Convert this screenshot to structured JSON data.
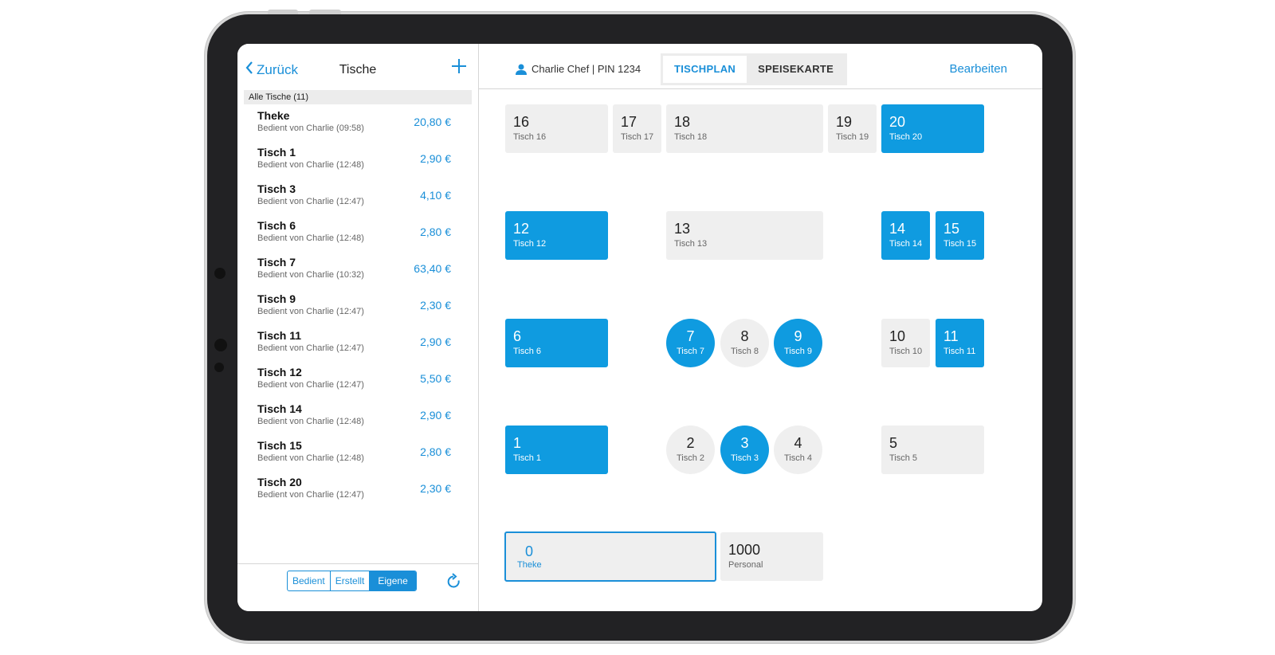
{
  "sidebar": {
    "back_label": "Zurück",
    "title": "Tische",
    "section_header": "Alle Tische (11)",
    "items": [
      {
        "name": "Theke",
        "sub": "Bedient von Charlie (09:58)",
        "amount": "20,80 €"
      },
      {
        "name": "Tisch 1",
        "sub": "Bedient von Charlie (12:48)",
        "amount": "2,90 €"
      },
      {
        "name": "Tisch 3",
        "sub": "Bedient von Charlie (12:47)",
        "amount": "4,10 €"
      },
      {
        "name": "Tisch 6",
        "sub": "Bedient von Charlie (12:48)",
        "amount": "2,80 €"
      },
      {
        "name": "Tisch 7",
        "sub": "Bedient von Charlie (10:32)",
        "amount": "63,40 €"
      },
      {
        "name": "Tisch 9",
        "sub": "Bedient von Charlie (12:47)",
        "amount": "2,30 €"
      },
      {
        "name": "Tisch 11",
        "sub": "Bedient von Charlie (12:47)",
        "amount": "2,90 €"
      },
      {
        "name": "Tisch 12",
        "sub": "Bedient von Charlie (12:47)",
        "amount": "5,50 €"
      },
      {
        "name": "Tisch 14",
        "sub": "Bedient von Charlie (12:48)",
        "amount": "2,90 €"
      },
      {
        "name": "Tisch 15",
        "sub": "Bedient von Charlie (12:48)",
        "amount": "2,80 €"
      },
      {
        "name": "Tisch 20",
        "sub": "Bedient von Charlie (12:47)",
        "amount": "2,30 €"
      }
    ],
    "filters": [
      "Bedient",
      "Erstellt",
      "Eigene"
    ],
    "active_filter": "Eigene"
  },
  "topbar": {
    "user": "Charlie Chef | PIN 1234",
    "tabs": [
      "TISCHPLAN",
      "SPEISEKARTE"
    ],
    "active_tab": "TISCHPLAN",
    "edit_label": "Bearbeiten"
  },
  "tables": {
    "t16": {
      "num": "16",
      "label": "Tisch 16",
      "occupied": false
    },
    "t17": {
      "num": "17",
      "label": "Tisch 17",
      "occupied": false
    },
    "t18": {
      "num": "18",
      "label": "Tisch 18",
      "occupied": false
    },
    "t19": {
      "num": "19",
      "label": "Tisch 19",
      "occupied": false
    },
    "t20": {
      "num": "20",
      "label": "Tisch 20",
      "occupied": true
    },
    "t12": {
      "num": "12",
      "label": "Tisch 12",
      "occupied": true
    },
    "t13": {
      "num": "13",
      "label": "Tisch 13",
      "occupied": false
    },
    "t14": {
      "num": "14",
      "label": "Tisch 14",
      "occupied": true
    },
    "t15": {
      "num": "15",
      "label": "Tisch 15",
      "occupied": true
    },
    "t6": {
      "num": "6",
      "label": "Tisch 6",
      "occupied": true
    },
    "t7": {
      "num": "7",
      "label": "Tisch 7",
      "occupied": true
    },
    "t8": {
      "num": "8",
      "label": "Tisch 8",
      "occupied": false
    },
    "t9": {
      "num": "9",
      "label": "Tisch 9",
      "occupied": true
    },
    "t10": {
      "num": "10",
      "label": "Tisch 10",
      "occupied": false
    },
    "t11": {
      "num": "11",
      "label": "Tisch 11",
      "occupied": true
    },
    "t1": {
      "num": "1",
      "label": "Tisch 1",
      "occupied": true
    },
    "t2": {
      "num": "2",
      "label": "Tisch 2",
      "occupied": false
    },
    "t3": {
      "num": "3",
      "label": "Tisch 3",
      "occupied": true
    },
    "t4": {
      "num": "4",
      "label": "Tisch 4",
      "occupied": false
    },
    "t5": {
      "num": "5",
      "label": "Tisch 5",
      "occupied": false
    },
    "t0": {
      "num": "0",
      "label": "Theke",
      "occupied": false,
      "selected": true
    },
    "t1000": {
      "num": "1000",
      "label": "Personal",
      "occupied": false
    }
  },
  "colors": {
    "accent": "#1a8fd8",
    "occupied": "#0f9be0",
    "free": "#efefef"
  }
}
